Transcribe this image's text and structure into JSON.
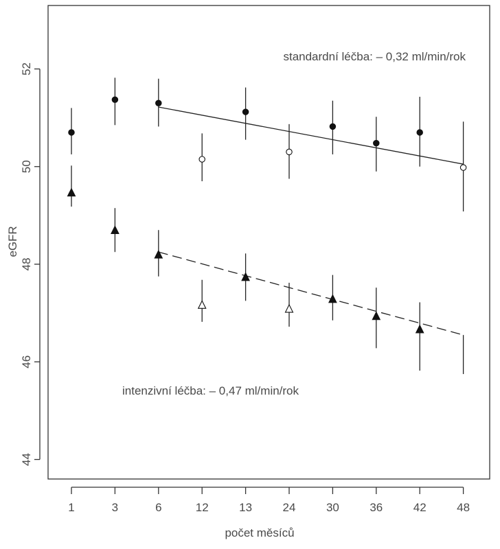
{
  "chart_data": {
    "type": "scatter",
    "title": "",
    "xlabel": "počet měsíců",
    "ylabel": "eGFR",
    "categories": [
      "1",
      "3",
      "6",
      "12",
      "13",
      "24",
      "30",
      "36",
      "42",
      "48"
    ],
    "ylim": [
      43.6,
      53.3
    ],
    "yticks": [
      44,
      46,
      48,
      50,
      52
    ],
    "grid": false,
    "series": [
      {
        "marker": "circle",
        "points": [
          {
            "x": "1",
            "y": 50.7,
            "low": 50.25,
            "high": 51.2,
            "filled": true
          },
          {
            "x": "3",
            "y": 51.37,
            "low": 50.85,
            "high": 51.82,
            "filled": true
          },
          {
            "x": "6",
            "y": 51.3,
            "low": 50.82,
            "high": 51.8,
            "filled": true
          },
          {
            "x": "12",
            "y": 50.15,
            "low": 49.7,
            "high": 50.68,
            "filled": false
          },
          {
            "x": "13",
            "y": 51.12,
            "low": 50.55,
            "high": 51.62,
            "filled": true
          },
          {
            "x": "24",
            "y": 50.3,
            "low": 49.75,
            "high": 50.87,
            "filled": false
          },
          {
            "x": "30",
            "y": 50.82,
            "low": 50.25,
            "high": 51.35,
            "filled": true
          },
          {
            "x": "36",
            "y": 50.48,
            "low": 49.9,
            "high": 51.02,
            "filled": true
          },
          {
            "x": "42",
            "y": 50.7,
            "low": 50.0,
            "high": 51.43,
            "filled": true
          },
          {
            "x": "48",
            "y": 49.98,
            "low": 49.08,
            "high": 50.92,
            "filled": false
          }
        ],
        "trend": {
          "from": "6",
          "to": "48",
          "y_start": 51.22,
          "y_end": 50.05,
          "style": "solid"
        }
      },
      {
        "marker": "triangle",
        "points": [
          {
            "x": "1",
            "y": 49.45,
            "low": 49.18,
            "high": 50.02,
            "filled": true
          },
          {
            "x": "3",
            "y": 48.68,
            "low": 48.25,
            "high": 49.15,
            "filled": true
          },
          {
            "x": "6",
            "y": 48.18,
            "low": 47.75,
            "high": 48.7,
            "filled": true
          },
          {
            "x": "12",
            "y": 47.15,
            "low": 46.82,
            "high": 47.68,
            "filled": false
          },
          {
            "x": "13",
            "y": 47.72,
            "low": 47.25,
            "high": 48.22,
            "filled": true
          },
          {
            "x": "24",
            "y": 47.07,
            "low": 46.72,
            "high": 47.62,
            "filled": false
          },
          {
            "x": "30",
            "y": 47.27,
            "low": 46.85,
            "high": 47.78,
            "filled": true
          },
          {
            "x": "36",
            "y": 46.92,
            "low": 46.28,
            "high": 47.52,
            "filled": true
          },
          {
            "x": "42",
            "y": 46.65,
            "low": 45.82,
            "high": 47.22,
            "filled": true
          },
          {
            "x": "48",
            "y": null,
            "low": 45.75,
            "high": 46.55,
            "filled": true
          }
        ],
        "trend": {
          "from": "6",
          "to": "48",
          "y_start": 48.25,
          "y_end": 46.55,
          "style": "dashed"
        }
      }
    ],
    "annotations": [
      {
        "text": "standardní léčba: – 0,32 ml/min/rok"
      },
      {
        "text": "intenzivní léčba: – 0,47 ml/min/rok"
      }
    ]
  }
}
